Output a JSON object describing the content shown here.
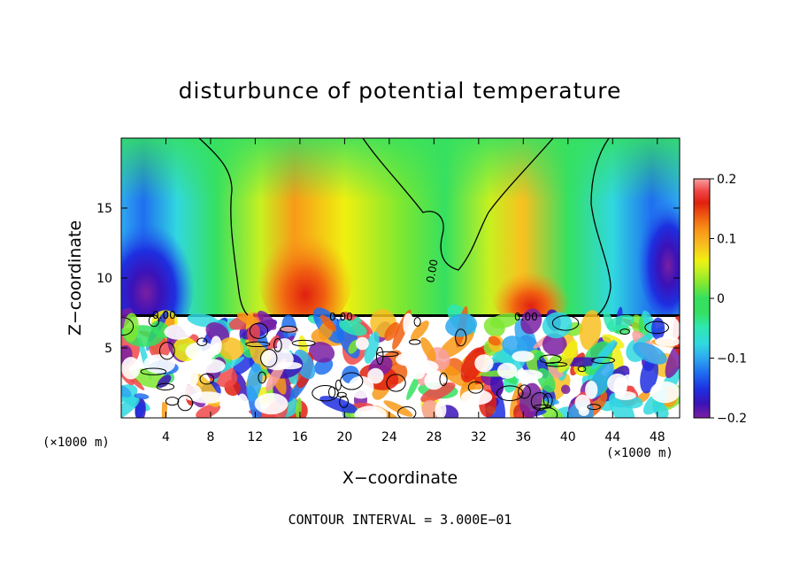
{
  "chart_data": {
    "type": "heatmap",
    "title": "disturbunce of potential temperature",
    "xlabel": "X−coordinate",
    "ylabel": "Z−coordinate",
    "x_unit_left": "(×1000 m)",
    "x_unit_right": "(×1000 m)",
    "xlim": [
      0,
      50
    ],
    "ylim": [
      0,
      20
    ],
    "x_ticks": [
      4,
      8,
      12,
      16,
      20,
      24,
      28,
      32,
      36,
      40,
      44,
      48
    ],
    "y_ticks": [
      5,
      10,
      15
    ],
    "colorbar": {
      "range": [
        -0.2,
        0.2
      ],
      "ticks": [
        0.2,
        0.1,
        0,
        -0.1,
        -0.2
      ],
      "tick_labels": [
        "0.2",
        "0.1",
        "0",
        "−0.1",
        "−0.2"
      ],
      "colors": [
        "#7a1fa2",
        "#3b12b8",
        "#1e2fe0",
        "#1f6ff0",
        "#2fa8f0",
        "#31d8e0",
        "#2fe8b0",
        "#35e060",
        "#7ee830",
        "#c8f020",
        "#f0f010",
        "#f8c020",
        "#f89a18",
        "#f06010",
        "#e02010",
        "#f04848",
        "#f8a0a0"
      ]
    },
    "contour_labels": [
      "0.00",
      "0.00",
      "0.00",
      "0.00"
    ],
    "contour_interval_text": "CONTOUR INTERVAL = 3.000E−01",
    "layers": {
      "upper": {
        "z_range": [
          7.3,
          20
        ],
        "pattern": "positive anomaly (warm, up to ~0.15) over x 10–40, negative anomaly (cool, down to ~−0.2) near x 0–6 and x 44–50"
      },
      "lower": {
        "z_range": [
          0,
          7.3
        ],
        "pattern": "turbulent mixed layer with strong ±0.2 fluctuations, warm plume near x 24–32"
      }
    }
  }
}
